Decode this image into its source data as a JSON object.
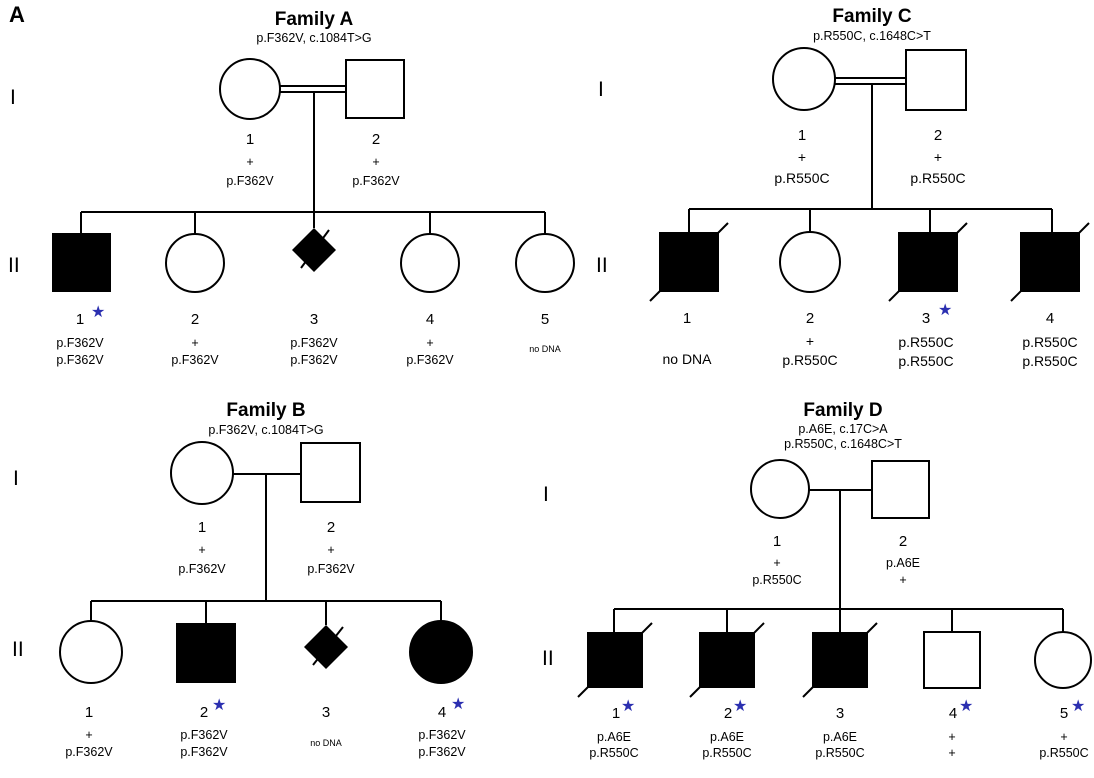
{
  "panel_label": "A",
  "star_glyph": "★",
  "star_color": "#2b2fb0",
  "families": {
    "A": {
      "title": "Family A",
      "mutation": "p.F362V, c.1084T>G",
      "gen_I": "I",
      "gen_II": "II",
      "I": [
        {
          "num": "1",
          "l1": "+",
          "l2": "p.F362V"
        },
        {
          "num": "2",
          "l1": "+",
          "l2": "p.F362V"
        }
      ],
      "II": [
        {
          "num": "1",
          "l1": "p.F362V",
          "l2": "p.F362V"
        },
        {
          "num": "2",
          "l1": "+",
          "l2": "p.F362V"
        },
        {
          "num": "3",
          "l1": "p.F362V",
          "l2": "p.F362V"
        },
        {
          "num": "4",
          "l1": "+",
          "l2": "p.F362V"
        },
        {
          "num": "5",
          "l1": "no DNA",
          "l2": ""
        }
      ]
    },
    "B": {
      "title": "Family B",
      "mutation": "p.F362V, c.1084T>G",
      "gen_I": "I",
      "gen_II": "II",
      "I": [
        {
          "num": "1",
          "l1": "+",
          "l2": "p.F362V"
        },
        {
          "num": "2",
          "l1": "+",
          "l2": "p.F362V"
        }
      ],
      "II": [
        {
          "num": "1",
          "l1": "+",
          "l2": "p.F362V"
        },
        {
          "num": "2",
          "l1": "p.F362V",
          "l2": "p.F362V"
        },
        {
          "num": "3",
          "l1": "no DNA",
          "l2": ""
        },
        {
          "num": "4",
          "l1": "p.F362V",
          "l2": "p.F362V"
        }
      ]
    },
    "C": {
      "title": "Family C",
      "mutation": "p.R550C, c.1648C>T",
      "gen_I": "I",
      "gen_II": "II",
      "I": [
        {
          "num": "1",
          "l1": "+",
          "l2": "p.R550C"
        },
        {
          "num": "2",
          "l1": "+",
          "l2": "p.R550C"
        }
      ],
      "II": [
        {
          "num": "1",
          "l1": "no DNA",
          "l2": ""
        },
        {
          "num": "2",
          "l1": "+",
          "l2": "p.R550C"
        },
        {
          "num": "3",
          "l1": "p.R550C",
          "l2": "p.R550C"
        },
        {
          "num": "4",
          "l1": "p.R550C",
          "l2": "p.R550C"
        }
      ]
    },
    "D": {
      "title": "Family D",
      "mutation1": "p.A6E, c.17C>A",
      "mutation2": "p.R550C, c.1648C>T",
      "gen_I": "I",
      "gen_II": "II",
      "I": [
        {
          "num": "1",
          "l1": "+",
          "l2": "p.R550C"
        },
        {
          "num": "2",
          "l1": "p.A6E",
          "l2": "+"
        }
      ],
      "II": [
        {
          "num": "1",
          "l1": "p.A6E",
          "l2": "p.R550C"
        },
        {
          "num": "2",
          "l1": "p.A6E",
          "l2": "p.R550C"
        },
        {
          "num": "3",
          "l1": "p.A6E",
          "l2": "p.R550C"
        },
        {
          "num": "4",
          "l1": "+",
          "l2": "+"
        },
        {
          "num": "5",
          "l1": "+",
          "l2": "p.R550C"
        }
      ]
    }
  }
}
